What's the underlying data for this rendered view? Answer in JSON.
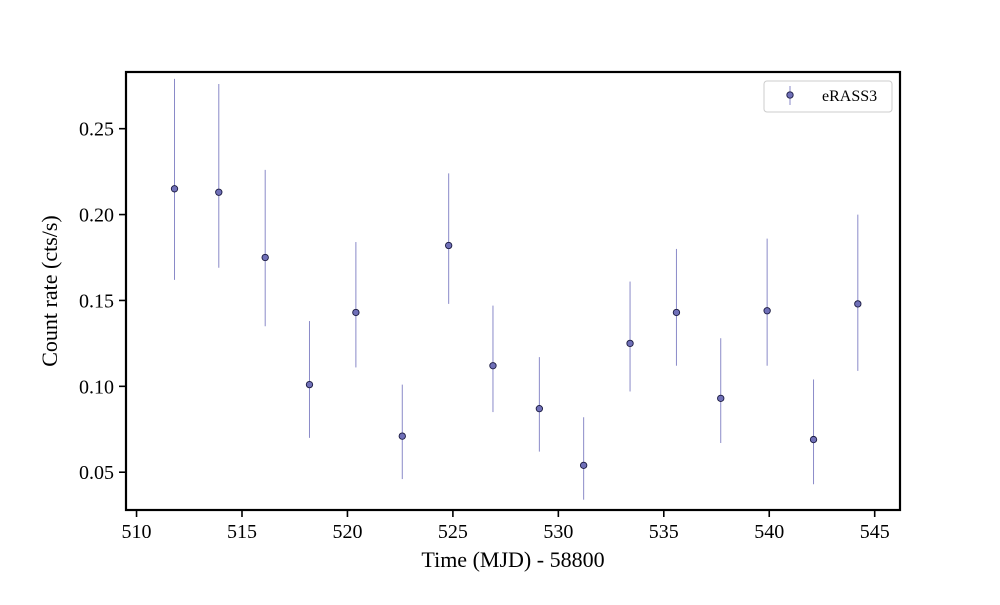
{
  "chart_data": {
    "type": "scatter",
    "title": "",
    "xlabel": "Time (MJD) - 58800",
    "ylabel": "Count rate (cts/s)",
    "xlim": [
      509.5,
      546.2
    ],
    "ylim": [
      0.028,
      0.283
    ],
    "xticks": [
      510,
      515,
      520,
      525,
      530,
      535,
      540,
      545
    ],
    "xtick_labels": [
      "510",
      "515",
      "520",
      "525",
      "530",
      "535",
      "540",
      "545"
    ],
    "yticks": [
      0.05,
      0.1,
      0.15,
      0.2,
      0.25
    ],
    "ytick_labels": [
      "0.05",
      "0.10",
      "0.15",
      "0.20",
      "0.25"
    ],
    "grid": false,
    "legend_position": "top-right",
    "series": [
      {
        "name": "eRASS3",
        "color": "#7070b8",
        "edge_color": "#1a1a40",
        "errorbar_color": "#8a8ac8",
        "points": [
          {
            "x": 511.8,
            "y": 0.215,
            "ylow": 0.162,
            "yhigh": 0.279
          },
          {
            "x": 513.9,
            "y": 0.213,
            "ylow": 0.169,
            "yhigh": 0.276
          },
          {
            "x": 516.1,
            "y": 0.175,
            "ylow": 0.135,
            "yhigh": 0.226
          },
          {
            "x": 518.2,
            "y": 0.101,
            "ylow": 0.07,
            "yhigh": 0.138
          },
          {
            "x": 520.4,
            "y": 0.143,
            "ylow": 0.111,
            "yhigh": 0.184
          },
          {
            "x": 522.6,
            "y": 0.071,
            "ylow": 0.046,
            "yhigh": 0.101
          },
          {
            "x": 524.8,
            "y": 0.182,
            "ylow": 0.148,
            "yhigh": 0.224
          },
          {
            "x": 526.9,
            "y": 0.112,
            "ylow": 0.085,
            "yhigh": 0.147
          },
          {
            "x": 529.1,
            "y": 0.087,
            "ylow": 0.062,
            "yhigh": 0.117
          },
          {
            "x": 531.2,
            "y": 0.054,
            "ylow": 0.034,
            "yhigh": 0.082
          },
          {
            "x": 533.4,
            "y": 0.125,
            "ylow": 0.097,
            "yhigh": 0.161
          },
          {
            "x": 535.6,
            "y": 0.143,
            "ylow": 0.112,
            "yhigh": 0.18
          },
          {
            "x": 537.7,
            "y": 0.093,
            "ylow": 0.067,
            "yhigh": 0.128
          },
          {
            "x": 539.9,
            "y": 0.144,
            "ylow": 0.112,
            "yhigh": 0.186
          },
          {
            "x": 542.1,
            "y": 0.069,
            "ylow": 0.043,
            "yhigh": 0.104
          },
          {
            "x": 544.2,
            "y": 0.148,
            "ylow": 0.109,
            "yhigh": 0.2
          }
        ]
      }
    ]
  }
}
